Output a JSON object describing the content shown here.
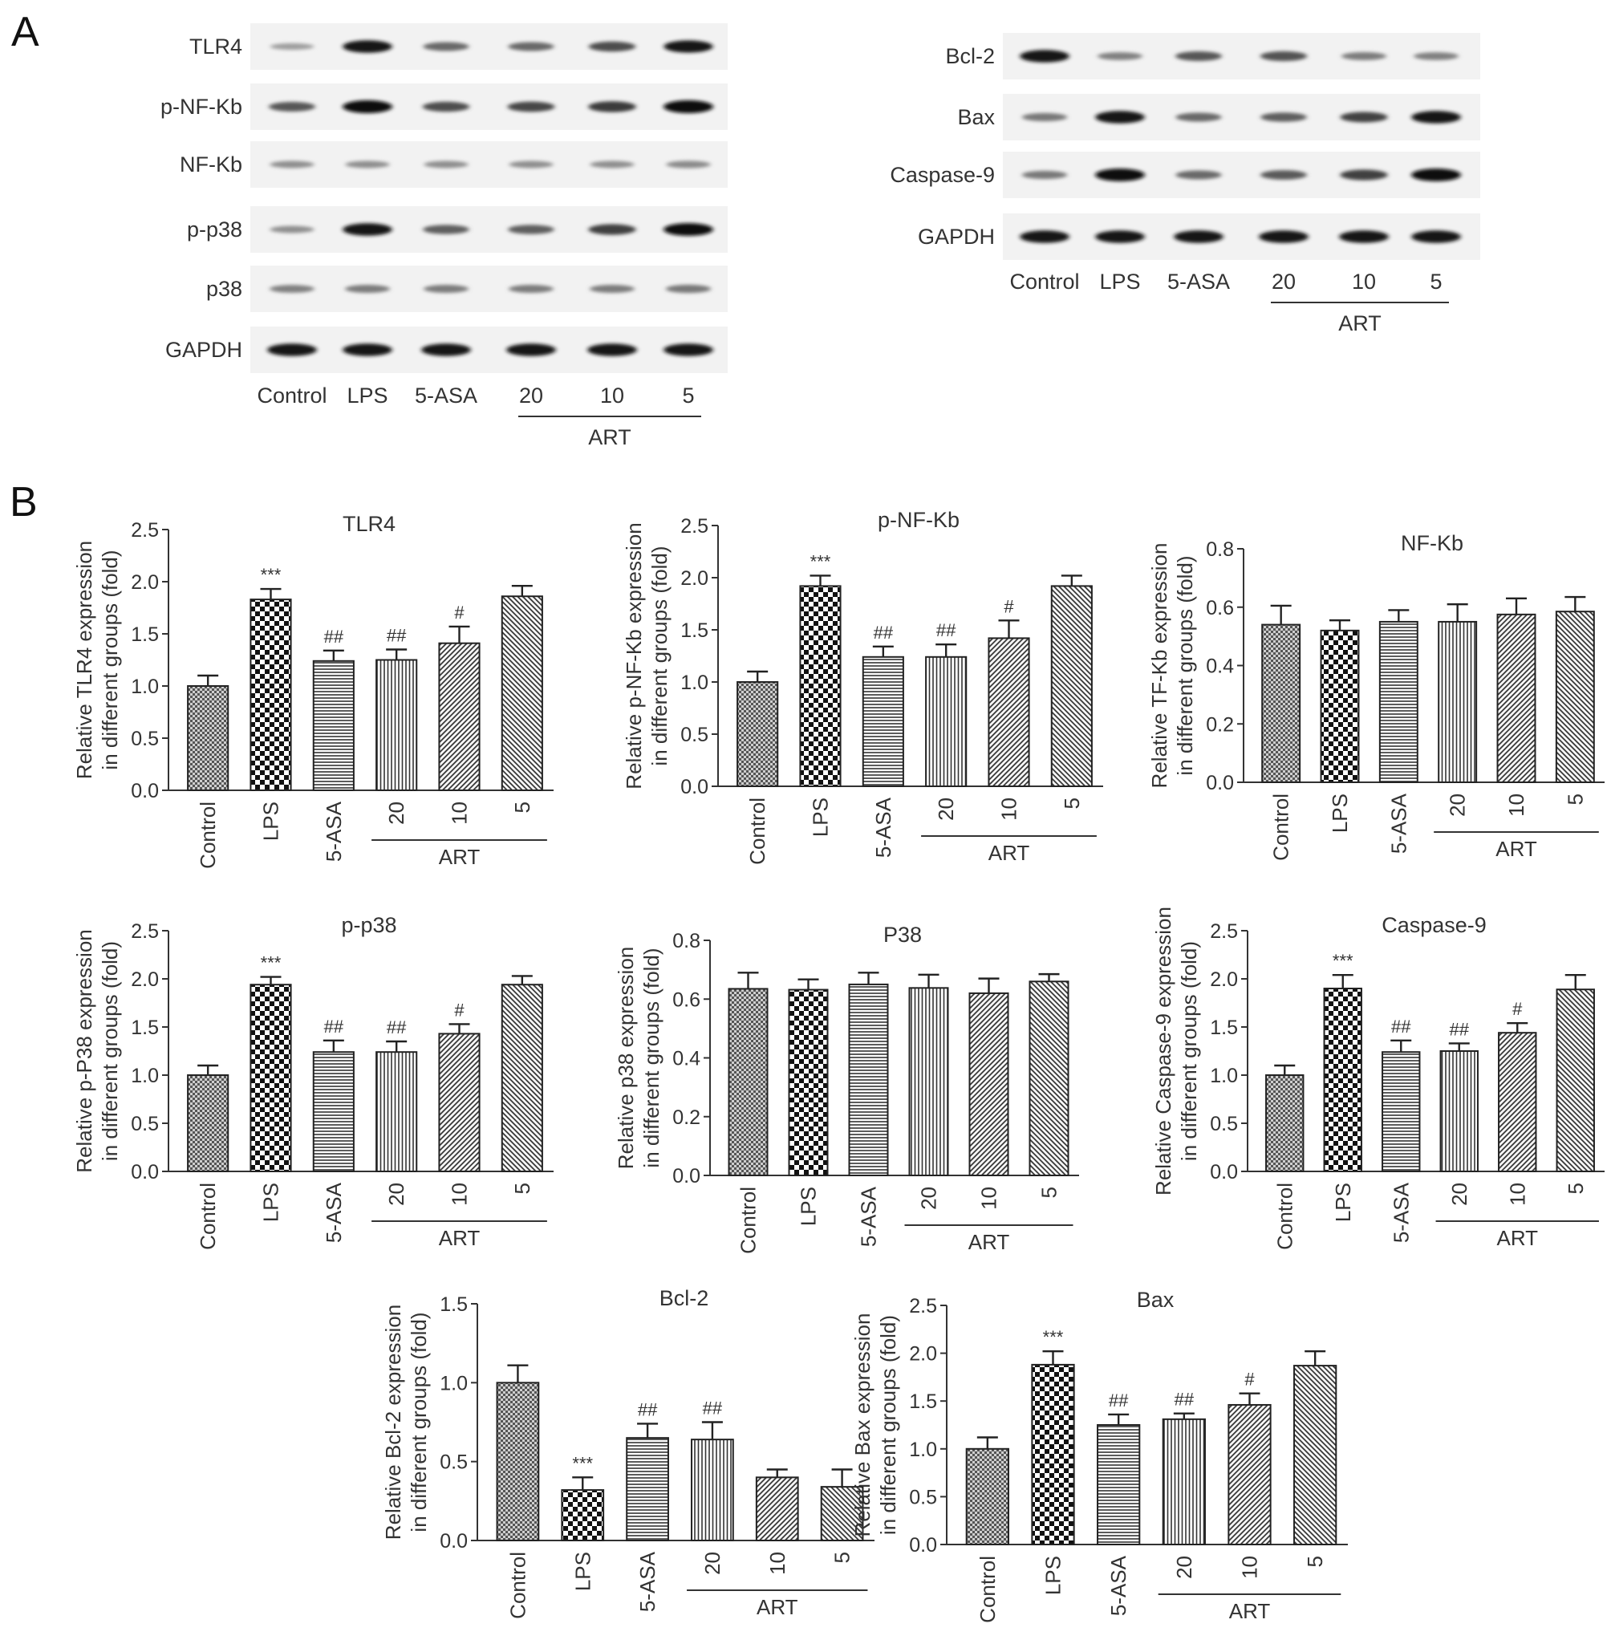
{
  "panel_a_label": "A",
  "panel_b_label": "B",
  "lane_labels": [
    "Control",
    "LPS",
    "5-ASA",
    "20",
    "10",
    "5"
  ],
  "art_label": "ART",
  "blot_left": {
    "rows": [
      {
        "label": "TLR4",
        "intensity": [
          0.22,
          0.95,
          0.5,
          0.5,
          0.65,
          0.92
        ]
      },
      {
        "label": "p-NF-Kb",
        "intensity": [
          0.6,
          1.0,
          0.65,
          0.68,
          0.75,
          1.0
        ]
      },
      {
        "label": "NF-Kb",
        "intensity": [
          0.3,
          0.3,
          0.3,
          0.3,
          0.3,
          0.32
        ]
      },
      {
        "label": "p-p38",
        "intensity": [
          0.3,
          0.95,
          0.55,
          0.55,
          0.72,
          0.98
        ]
      },
      {
        "label": "p38",
        "intensity": [
          0.38,
          0.4,
          0.4,
          0.4,
          0.4,
          0.42
        ]
      },
      {
        "label": "GAPDH",
        "intensity": [
          0.95,
          0.95,
          0.95,
          0.95,
          0.95,
          0.95
        ]
      }
    ]
  },
  "blot_right": {
    "rows": [
      {
        "label": "Bcl-2",
        "intensity": [
          0.95,
          0.38,
          0.6,
          0.62,
          0.4,
          0.38
        ]
      },
      {
        "label": "Bax",
        "intensity": [
          0.42,
          0.95,
          0.5,
          0.55,
          0.7,
          0.95
        ]
      },
      {
        "label": "Caspase-9",
        "intensity": [
          0.42,
          0.98,
          0.5,
          0.58,
          0.72,
          0.98
        ]
      },
      {
        "label": "GAPDH",
        "intensity": [
          0.95,
          0.95,
          0.95,
          0.95,
          0.95,
          0.95
        ]
      }
    ]
  },
  "chart_data": [
    {
      "type": "bar",
      "title": "TLR4",
      "ylabel": [
        "Relative TLR4 expression",
        "in different groups (fold)"
      ],
      "categories": [
        "Control",
        "LPS",
        "5-ASA",
        "20",
        "10",
        "5"
      ],
      "group_label": "ART",
      "values": [
        1.0,
        1.83,
        1.24,
        1.25,
        1.41,
        1.86
      ],
      "errors": [
        0.1,
        0.1,
        0.1,
        0.1,
        0.16,
        0.1
      ],
      "annotations": [
        "",
        "***",
        "##",
        "##",
        "#",
        ""
      ],
      "ylim": [
        0,
        2.5
      ],
      "yticks": [
        0.0,
        0.5,
        1.0,
        1.5,
        2.0,
        2.5
      ],
      "tick_decimals": 1
    },
    {
      "type": "bar",
      "title": "p-NF-Kb",
      "ylabel": [
        "Relative p-NF-Kb expression",
        "in different groups (fold)"
      ],
      "categories": [
        "Control",
        "LPS",
        "5-ASA",
        "20",
        "10",
        "5"
      ],
      "group_label": "ART",
      "values": [
        1.0,
        1.92,
        1.24,
        1.24,
        1.42,
        1.92
      ],
      "errors": [
        0.1,
        0.1,
        0.1,
        0.12,
        0.17,
        0.1
      ],
      "annotations": [
        "",
        "***",
        "##",
        "##",
        "#",
        ""
      ],
      "ylim": [
        0,
        2.5
      ],
      "yticks": [
        0.0,
        0.5,
        1.0,
        1.5,
        2.0,
        2.5
      ],
      "tick_decimals": 1
    },
    {
      "type": "bar",
      "title": "NF-Kb",
      "ylabel": [
        "Relative TF-Kb expression",
        "in different groups (fold)"
      ],
      "categories": [
        "Control",
        "LPS",
        "5-ASA",
        "20",
        "10",
        "5"
      ],
      "group_label": "ART",
      "values": [
        0.54,
        0.52,
        0.55,
        0.55,
        0.575,
        0.585
      ],
      "errors": [
        0.065,
        0.035,
        0.04,
        0.06,
        0.055,
        0.05
      ],
      "annotations": [
        "",
        "",
        "",
        "",
        "",
        ""
      ],
      "ylim": [
        0,
        0.8
      ],
      "yticks": [
        0.0,
        0.2,
        0.4,
        0.6,
        0.8
      ],
      "tick_decimals": 1
    },
    {
      "type": "bar",
      "title": "p-p38",
      "ylabel": [
        "Relative p-P38 expression",
        "in different groups (fold)"
      ],
      "categories": [
        "Control",
        "LPS",
        "5-ASA",
        "20",
        "10",
        "5"
      ],
      "group_label": "ART",
      "values": [
        1.0,
        1.94,
        1.24,
        1.24,
        1.43,
        1.94
      ],
      "errors": [
        0.1,
        0.08,
        0.12,
        0.11,
        0.1,
        0.09
      ],
      "annotations": [
        "",
        "***",
        "##",
        "##",
        "#",
        ""
      ],
      "ylim": [
        0,
        2.5
      ],
      "yticks": [
        0.0,
        0.5,
        1.0,
        1.5,
        2.0,
        2.5
      ],
      "tick_decimals": 1
    },
    {
      "type": "bar",
      "title": "P38",
      "ylabel": [
        "Relative p38 expression",
        "in different groups (fold)"
      ],
      "categories": [
        "Control",
        "LPS",
        "5-ASA",
        "20",
        "10",
        "5"
      ],
      "group_label": "ART",
      "values": [
        0.635,
        0.632,
        0.65,
        0.638,
        0.62,
        0.66
      ],
      "errors": [
        0.055,
        0.035,
        0.04,
        0.045,
        0.05,
        0.025
      ],
      "annotations": [
        "",
        "",
        "",
        "",
        "",
        ""
      ],
      "ylim": [
        0,
        0.8
      ],
      "yticks": [
        0.0,
        0.2,
        0.4,
        0.6,
        0.8
      ],
      "tick_decimals": 1
    },
    {
      "type": "bar",
      "title": "Caspase-9",
      "ylabel": [
        "Relative Caspase-9 expression",
        "in different groups (fold)"
      ],
      "categories": [
        "Control",
        "LPS",
        "5-ASA",
        "20",
        "10",
        "5"
      ],
      "group_label": "ART",
      "values": [
        1.0,
        1.9,
        1.24,
        1.25,
        1.44,
        1.89
      ],
      "errors": [
        0.1,
        0.14,
        0.12,
        0.08,
        0.1,
        0.15
      ],
      "annotations": [
        "",
        "***",
        "##",
        "##",
        "#",
        ""
      ],
      "ylim": [
        0,
        2.5
      ],
      "yticks": [
        0.0,
        0.5,
        1.0,
        1.5,
        2.0,
        2.5
      ],
      "tick_decimals": 1
    },
    {
      "type": "bar",
      "title": "Bcl-2",
      "ylabel": [
        "Relative Bcl-2 expression",
        "in different groups (fold)"
      ],
      "categories": [
        "Control",
        "LPS",
        "5-ASA",
        "20",
        "10",
        "5"
      ],
      "group_label": "ART",
      "values": [
        1.0,
        0.32,
        0.65,
        0.64,
        0.4,
        0.34
      ],
      "errors": [
        0.11,
        0.08,
        0.09,
        0.11,
        0.05,
        0.11
      ],
      "annotations": [
        "",
        "***",
        "##",
        "##",
        "",
        ""
      ],
      "ylim": [
        0,
        1.5
      ],
      "yticks": [
        0.0,
        0.5,
        1.0,
        1.5
      ],
      "tick_decimals": 1
    },
    {
      "type": "bar",
      "title": "Bax",
      "ylabel": [
        "Relative Bax expression",
        "in different groups (fold)"
      ],
      "categories": [
        "Control",
        "LPS",
        "5-ASA",
        "20",
        "10",
        "5"
      ],
      "group_label": "ART",
      "values": [
        1.0,
        1.88,
        1.25,
        1.31,
        1.46,
        1.87
      ],
      "errors": [
        0.12,
        0.14,
        0.11,
        0.06,
        0.12,
        0.15
      ],
      "annotations": [
        "",
        "***",
        "##",
        "##",
        "#",
        ""
      ],
      "ylim": [
        0,
        2.5
      ],
      "yticks": [
        0.0,
        0.5,
        1.0,
        1.5,
        2.0,
        2.5
      ],
      "tick_decimals": 1
    }
  ]
}
